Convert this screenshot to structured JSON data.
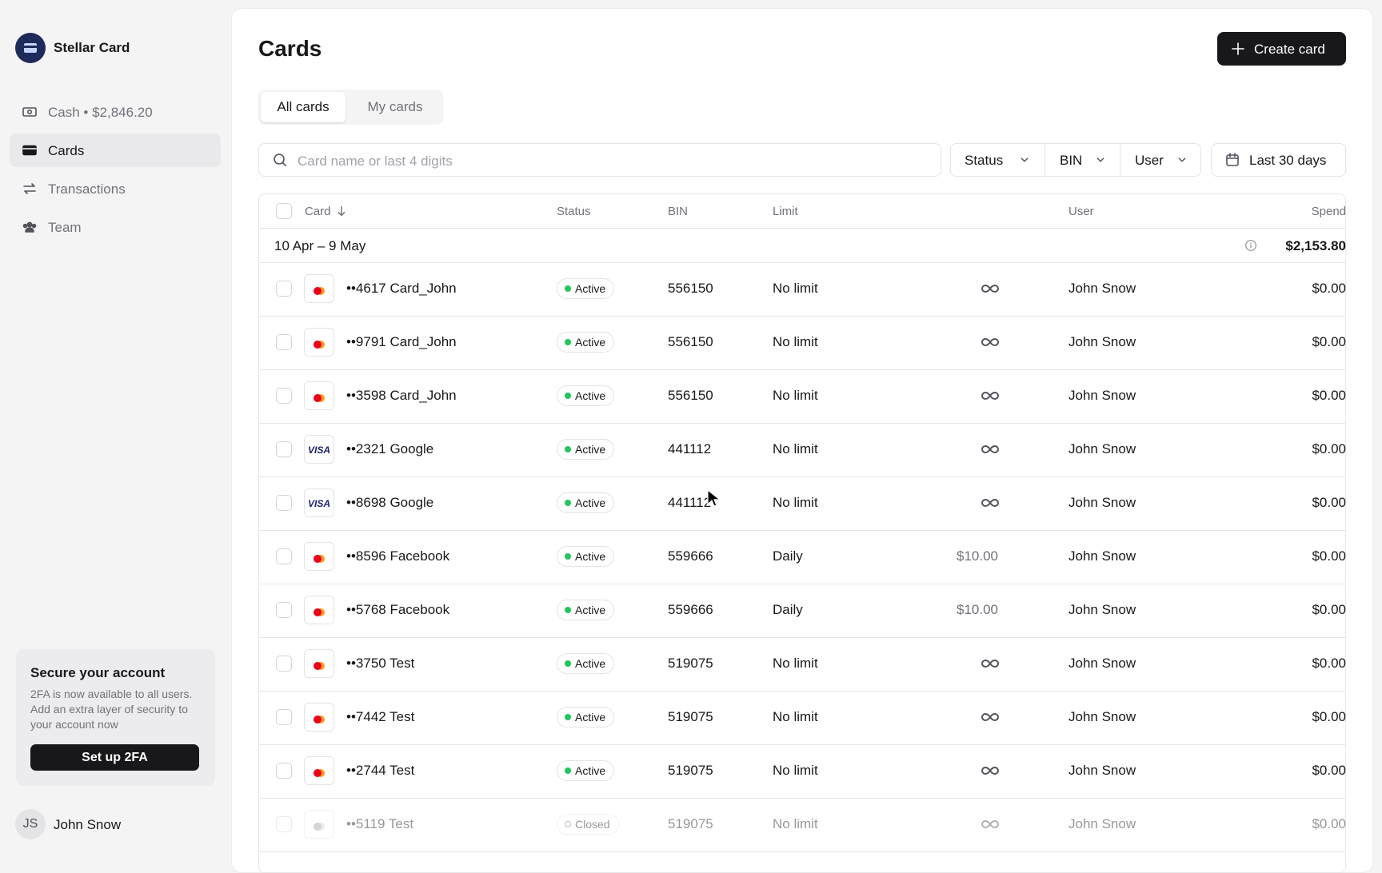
{
  "sidebar": {
    "brand": "Stellar Card",
    "nav": [
      "Cash • $2,846.20",
      "Cards",
      "Transactions",
      "Team"
    ],
    "promo": {
      "title": "Secure your account",
      "text": "2FA is now available to all users. Add an extra layer of security to your account now",
      "button": "Set up 2FA"
    },
    "user": {
      "initials": "JS",
      "name": "John Snow"
    }
  },
  "header": {
    "title": "Cards",
    "button": "Create card"
  },
  "tabs": [
    "All cards",
    "My cards"
  ],
  "search_placeholder": "Card name or last 4 digits",
  "filters": [
    "Status",
    "BIN",
    "User"
  ],
  "date_filter": "Last 30 days",
  "table": {
    "columns": [
      "Card",
      "Status",
      "BIN",
      "Limit",
      "User",
      "Spend"
    ],
    "group": {
      "label": "10 Apr – 9 May",
      "total": "$2,153.80"
    },
    "rows": [
      {
        "logo": null,
        "card": "••4617 Card_John",
        "status": "Active",
        "bin": "556150",
        "limit": "No limit",
        "amount": null,
        "user": "John Snow",
        "spend": "$0.00"
      },
      {
        "logo": null,
        "card": "••9791 Card_John",
        "status": "Active",
        "bin": "556150",
        "limit": "No limit",
        "amount": null,
        "user": "John Snow",
        "spend": "$0.00"
      },
      {
        "logo": null,
        "card": "••3598 Card_John",
        "status": "Active",
        "bin": "556150",
        "limit": "No limit",
        "amount": null,
        "user": "John Snow",
        "spend": "$0.00"
      },
      {
        "logo": "VISA",
        "card": "••2321 Google",
        "status": "Active",
        "bin": "441112",
        "limit": "No limit",
        "amount": null,
        "user": "John Snow",
        "spend": "$0.00"
      },
      {
        "logo": "VISA",
        "card": "••8698 Google",
        "status": "Active",
        "bin": "441112",
        "limit": "No limit",
        "amount": null,
        "user": "John Snow",
        "spend": "$0.00"
      },
      {
        "logo": null,
        "card": "••8596 Facebook",
        "status": "Active",
        "bin": "559666",
        "limit": "Daily",
        "amount": "$10.00",
        "user": "John Snow",
        "spend": "$0.00"
      },
      {
        "logo": null,
        "card": "••5768 Facebook",
        "status": "Active",
        "bin": "559666",
        "limit": "Daily",
        "amount": "$10.00",
        "user": "John Snow",
        "spend": "$0.00"
      },
      {
        "logo": null,
        "card": "••3750 Test",
        "status": "Active",
        "bin": "519075",
        "limit": "No limit",
        "amount": null,
        "user": "John Snow",
        "spend": "$0.00"
      },
      {
        "logo": null,
        "card": "••7442 Test",
        "status": "Active",
        "bin": "519075",
        "limit": "No limit",
        "amount": null,
        "user": "John Snow",
        "spend": "$0.00"
      },
      {
        "logo": null,
        "card": "••2744 Test",
        "status": "Active",
        "bin": "519075",
        "limit": "No limit",
        "amount": null,
        "user": "John Snow",
        "spend": "$0.00"
      },
      {
        "logo": null,
        "card": "••5119 Test",
        "status": "Closed",
        "bin": "519075",
        "limit": "No limit",
        "amount": null,
        "user": "John Snow",
        "spend": "$0.00"
      }
    ]
  }
}
